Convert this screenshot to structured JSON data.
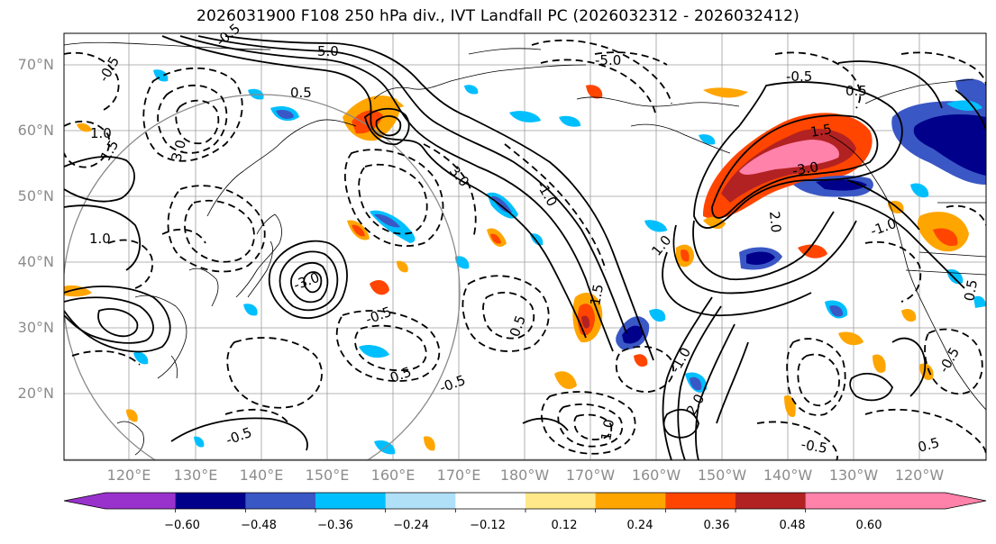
{
  "title": "2026031900 F108 250 hPa div., IVT Landfall PC (2026032312 - 2026032412)",
  "map": {
    "lat_labels": [
      "70°N",
      "60°N",
      "50°N",
      "40°N",
      "30°N",
      "20°N"
    ],
    "lon_labels": [
      "120°E",
      "130°E",
      "140°E",
      "150°E",
      "160°E",
      "170°E",
      "180°W",
      "170°W",
      "160°W",
      "150°W",
      "140°W",
      "130°W",
      "120°W"
    ],
    "contour_labels": [
      "-0.5",
      "5.0",
      "-0.5",
      "0.5",
      "1.0",
      "1.5",
      "3.0",
      "-3.0",
      "2.0",
      "-5.0",
      "1.0",
      "-1.0",
      "0.5",
      "-0.5",
      "3.0",
      "1.5",
      "-3.0",
      "0.5",
      "-1.0",
      "1.0",
      "2.0",
      "-0.5",
      "0.5",
      "-0.5",
      "1.0",
      "-0.5",
      "0.5",
      "-1.0",
      "0.5",
      "-0.5",
      "1.5",
      "-0.5"
    ]
  },
  "colorbar": {
    "ticks": [
      "−0.60",
      "−0.48",
      "−0.36",
      "−0.24",
      "−0.12",
      "0.12",
      "0.24",
      "0.36",
      "0.48",
      "0.60"
    ],
    "colors": [
      "#9932cc",
      "#00008b",
      "#3a57c6",
      "#00bfff",
      "#b0e0f8",
      "#ffffff",
      "#ffe88a",
      "#ffa500",
      "#ff4500",
      "#b22222",
      "#ff82ab",
      "#ff82ab"
    ]
  }
}
